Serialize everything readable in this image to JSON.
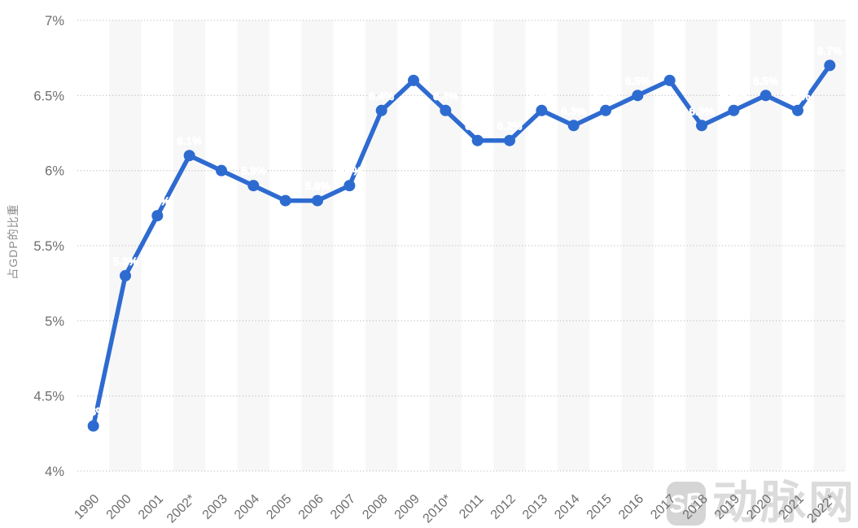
{
  "chart_data": {
    "type": "line",
    "title": "",
    "xlabel": "",
    "ylabel": "占GDP的比重",
    "ylim": [
      4,
      7
    ],
    "grid": "horizontal-dotted",
    "legend": "none",
    "categories": [
      "1990",
      "2000",
      "2001",
      "2002*",
      "2003",
      "2004",
      "2005",
      "2006",
      "2007",
      "2008",
      "2009",
      "2010*",
      "2011",
      "2012",
      "2013",
      "2014",
      "2015",
      "2016",
      "2017",
      "2018",
      "2019",
      "2020",
      "2021",
      "2022*"
    ],
    "values": [
      4.3,
      5.3,
      5.7,
      6.1,
      6.0,
      5.9,
      5.8,
      5.8,
      5.9,
      6.4,
      6.6,
      6.4,
      6.2,
      6.2,
      6.4,
      6.3,
      6.4,
      6.5,
      6.6,
      6.3,
      6.4,
      6.5,
      6.4,
      6.7
    ],
    "point_labels": [
      "4.3%",
      "5.3%",
      "5.7%",
      "6.1%",
      "6%",
      "5.9%",
      "5.8%",
      "5.8%",
      "5.9%",
      "6.4%",
      "6.6%",
      "6.4%",
      "6.2%",
      "6.2%",
      "6.4%",
      "6.3%",
      "6.4%",
      "6.5%",
      "6.6%",
      "6.3%",
      "6.4%",
      "6.5%",
      "6.4%",
      "6.7%"
    ],
    "yticks": [
      {
        "value": 7,
        "label": "7%"
      },
      {
        "value": 6.5,
        "label": "6.5%"
      },
      {
        "value": 6,
        "label": "6%"
      },
      {
        "value": 5.5,
        "label": "5.5%"
      },
      {
        "value": 5,
        "label": "5%"
      },
      {
        "value": 4.5,
        "label": "4.5%"
      },
      {
        "value": 4,
        "label": "4%"
      }
    ]
  },
  "colors": {
    "line": "#2e6bd0",
    "marker": "#2e6bd0",
    "gridline": "#cccccc",
    "stripe": "#f7f7f7",
    "axis_text": "#6e6e6e",
    "point_label": "#ffffff",
    "watermark": "#d9d9d9"
  },
  "watermark": {
    "text": "动脉网",
    "logo_glyph": "SB"
  }
}
